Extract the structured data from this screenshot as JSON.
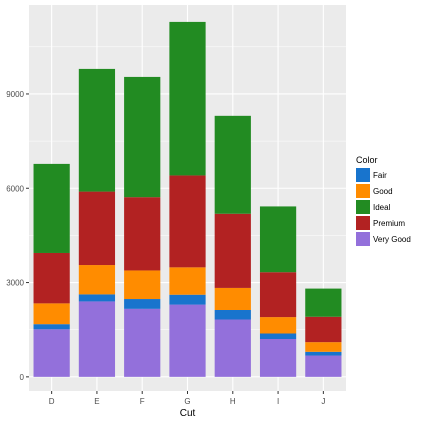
{
  "chart_data": {
    "type": "bar",
    "stacked": true,
    "categories": [
      "D",
      "E",
      "F",
      "G",
      "H",
      "I",
      "J"
    ],
    "series": [
      {
        "name": "Very Good",
        "color": "#9370DB",
        "values": [
          1513,
          2400,
          2164,
          2299,
          1824,
          1204,
          678
        ]
      },
      {
        "name": "Fair",
        "color": "#1874CD",
        "values": [
          163,
          224,
          312,
          314,
          303,
          175,
          119
        ]
      },
      {
        "name": "Good",
        "color": "#FF8C00",
        "values": [
          662,
          933,
          909,
          871,
          702,
          522,
          307
        ]
      },
      {
        "name": "Premium",
        "color": "#B22222",
        "values": [
          1603,
          2337,
          2331,
          2924,
          2360,
          1428,
          808
        ]
      },
      {
        "name": "Ideal",
        "color": "#228B22",
        "values": [
          2834,
          3903,
          3826,
          4884,
          3115,
          2093,
          896
        ]
      }
    ],
    "xlabel": "Cut",
    "ylabel": "",
    "ylim": [
      -450,
      11830
    ],
    "yticks": [
      0,
      3000,
      6000,
      9000
    ],
    "grid": true,
    "legend_position": "right",
    "legend_title": "Color",
    "legend_order": [
      "Fair",
      "Good",
      "Ideal",
      "Premium",
      "Very Good"
    ],
    "panel_background": "#EBEBEB",
    "grid_color": "#FFFFFF"
  }
}
